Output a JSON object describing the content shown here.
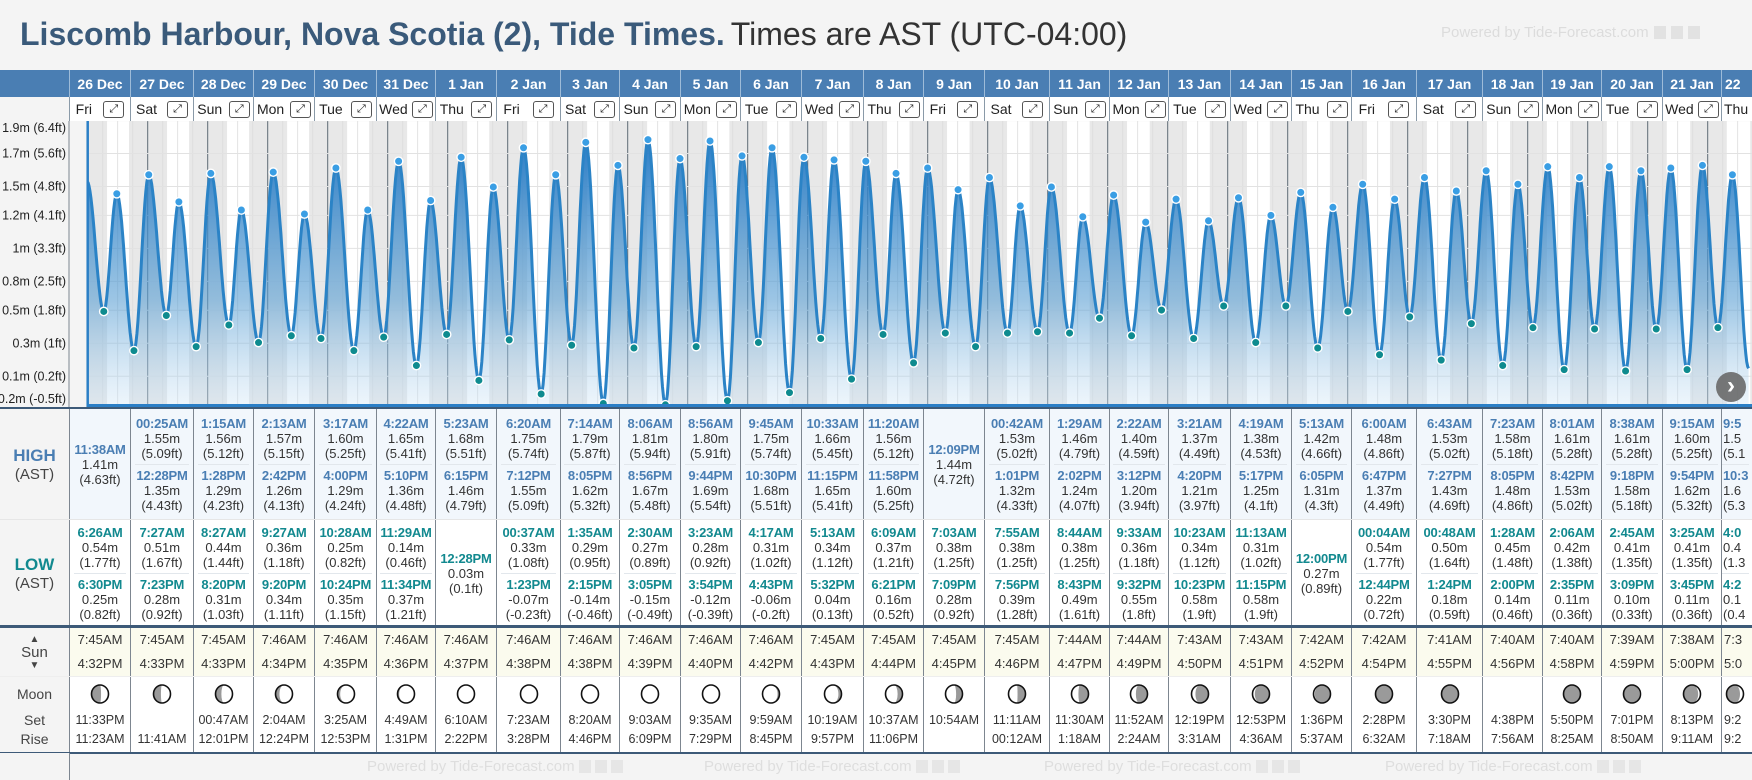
{
  "header": {
    "title_location": "Liscomb Harbour, Nova Scotia (2), Tide Times.",
    "title_tz": "Times are AST (UTC-04:00)",
    "powered_by": "Powered by Tide-Forecast.com"
  },
  "labels": {
    "high": "HIGH",
    "low": "LOW",
    "ast": "(AST)",
    "sun": "Sun",
    "moon": "Moon",
    "set": "Set",
    "rise": "Rise",
    "expand_icon": "⤢",
    "next_icon": "›",
    "sun_up": "▲",
    "sun_down": "▼"
  },
  "colors": {
    "brand": "#3a5a7a",
    "header_bar": "#4a7eb3",
    "high_text": "#4a7eb3",
    "low_text": "#12898f",
    "tide_line": "#2b83c6",
    "high_dot": "#3a9ee4",
    "low_dot": "#0e8b8f",
    "night_band": "#e8e8e8"
  },
  "days": [
    {
      "date": "26 Dec",
      "dow": "Fri",
      "highs": [
        [
          "11:38AM",
          "1.41m",
          "(4.63ft)"
        ]
      ],
      "lows": [
        [
          "6:26AM",
          "0.54m",
          "(1.77ft)"
        ],
        [
          "6:30PM",
          "0.25m",
          "(0.82ft)"
        ]
      ],
      "sunrise": "7:45AM",
      "sunset": "4:32PM",
      "moonset": "11:33PM",
      "moonrise": "11:23AM",
      "moon_phase": 0.23
    },
    {
      "date": "27 Dec",
      "dow": "Sat",
      "highs": [
        [
          "00:25AM",
          "1.55m",
          "(5.09ft)"
        ],
        [
          "12:28PM",
          "1.35m",
          "(4.43ft)"
        ]
      ],
      "lows": [
        [
          "7:27AM",
          "0.51m",
          "(1.67ft)"
        ],
        [
          "7:23PM",
          "0.28m",
          "(0.92ft)"
        ]
      ],
      "sunrise": "7:45AM",
      "sunset": "4:33PM",
      "moonset": "",
      "moonrise": "11:41AM",
      "moon_phase": 0.27
    },
    {
      "date": "28 Dec",
      "dow": "Sun",
      "highs": [
        [
          "1:15AM",
          "1.56m",
          "(5.12ft)"
        ],
        [
          "1:28PM",
          "1.29m",
          "(4.23ft)"
        ]
      ],
      "lows": [
        [
          "8:27AM",
          "0.44m",
          "(1.44ft)"
        ],
        [
          "8:20PM",
          "0.31m",
          "(1.03ft)"
        ]
      ],
      "sunrise": "7:45AM",
      "sunset": "4:33PM",
      "moonset": "00:47AM",
      "moonrise": "12:01PM",
      "moon_phase": 0.3
    },
    {
      "date": "29 Dec",
      "dow": "Mon",
      "highs": [
        [
          "2:13AM",
          "1.57m",
          "(5.15ft)"
        ],
        [
          "2:42PM",
          "1.26m",
          "(4.13ft)"
        ]
      ],
      "lows": [
        [
          "9:27AM",
          "0.36m",
          "(1.18ft)"
        ],
        [
          "9:20PM",
          "0.34m",
          "(1.11ft)"
        ]
      ],
      "sunrise": "7:46AM",
      "sunset": "4:34PM",
      "moonset": "2:04AM",
      "moonrise": "12:24PM",
      "moon_phase": 0.34
    },
    {
      "date": "30 Dec",
      "dow": "Tue",
      "highs": [
        [
          "3:17AM",
          "1.60m",
          "(5.25ft)"
        ],
        [
          "4:00PM",
          "1.29m",
          "(4.24ft)"
        ]
      ],
      "lows": [
        [
          "10:28AM",
          "0.25m",
          "(0.82ft)"
        ],
        [
          "10:24PM",
          "0.35m",
          "(1.15ft)"
        ]
      ],
      "sunrise": "7:46AM",
      "sunset": "4:35PM",
      "moonset": "3:25AM",
      "moonrise": "12:53PM",
      "moon_phase": 0.37
    },
    {
      "date": "31 Dec",
      "dow": "Wed",
      "highs": [
        [
          "4:22AM",
          "1.65m",
          "(5.41ft)"
        ],
        [
          "5:10PM",
          "1.36m",
          "(4.48ft)"
        ]
      ],
      "lows": [
        [
          "11:29AM",
          "0.14m",
          "(0.46ft)"
        ],
        [
          "11:34PM",
          "0.37m",
          "(1.21ft)"
        ]
      ],
      "sunrise": "7:46AM",
      "sunset": "4:36PM",
      "moonset": "4:49AM",
      "moonrise": "1:31PM",
      "moon_phase": 0.4
    },
    {
      "date": "1 Jan",
      "dow": "Thu",
      "highs": [
        [
          "5:23AM",
          "1.68m",
          "(5.51ft)"
        ],
        [
          "6:15PM",
          "1.46m",
          "(4.79ft)"
        ]
      ],
      "lows": [
        [
          "12:28PM",
          "0.03m",
          "(0.1ft)"
        ]
      ],
      "sunrise": "7:46AM",
      "sunset": "4:37PM",
      "moonset": "6:10AM",
      "moonrise": "2:22PM",
      "moon_phase": 0.44
    },
    {
      "date": "2 Jan",
      "dow": "Fri",
      "highs": [
        [
          "6:20AM",
          "1.75m",
          "(5.74ft)"
        ],
        [
          "7:12PM",
          "1.55m",
          "(5.09ft)"
        ]
      ],
      "lows": [
        [
          "00:37AM",
          "0.33m",
          "(1.08ft)"
        ],
        [
          "1:23PM",
          "-0.07m",
          "(-0.23ft)"
        ]
      ],
      "sunrise": "7:46AM",
      "sunset": "4:38PM",
      "moonset": "7:23AM",
      "moonrise": "3:28PM",
      "moon_phase": 0.47
    },
    {
      "date": "3 Jan",
      "dow": "Sat",
      "highs": [
        [
          "7:14AM",
          "1.79m",
          "(5.87ft)"
        ],
        [
          "8:05PM",
          "1.62m",
          "(5.32ft)"
        ]
      ],
      "lows": [
        [
          "1:35AM",
          "0.29m",
          "(0.95ft)"
        ],
        [
          "2:15PM",
          "-0.14m",
          "(-0.46ft)"
        ]
      ],
      "sunrise": "7:46AM",
      "sunset": "4:38PM",
      "moonset": "8:20AM",
      "moonrise": "4:46PM",
      "moon_phase": 0.5
    },
    {
      "date": "4 Jan",
      "dow": "Sun",
      "highs": [
        [
          "8:06AM",
          "1.81m",
          "(5.94ft)"
        ],
        [
          "8:56PM",
          "1.67m",
          "(5.48ft)"
        ]
      ],
      "lows": [
        [
          "2:30AM",
          "0.27m",
          "(0.89ft)"
        ],
        [
          "3:05PM",
          "-0.15m",
          "(-0.49ft)"
        ]
      ],
      "sunrise": "7:46AM",
      "sunset": "4:39PM",
      "moonset": "9:03AM",
      "moonrise": "6:09PM",
      "moon_phase": 0.54
    },
    {
      "date": "5 Jan",
      "dow": "Mon",
      "highs": [
        [
          "8:56AM",
          "1.80m",
          "(5.91ft)"
        ],
        [
          "9:44PM",
          "1.69m",
          "(5.54ft)"
        ]
      ],
      "lows": [
        [
          "3:23AM",
          "0.28m",
          "(0.92ft)"
        ],
        [
          "3:54PM",
          "-0.12m",
          "(-0.39ft)"
        ]
      ],
      "sunrise": "7:46AM",
      "sunset": "4:40PM",
      "moonset": "9:35AM",
      "moonrise": "7:29PM",
      "moon_phase": 0.57
    },
    {
      "date": "6 Jan",
      "dow": "Tue",
      "highs": [
        [
          "9:45AM",
          "1.75m",
          "(5.74ft)"
        ],
        [
          "10:30PM",
          "1.68m",
          "(5.51ft)"
        ]
      ],
      "lows": [
        [
          "4:17AM",
          "0.31m",
          "(1.02ft)"
        ],
        [
          "4:43PM",
          "-0.06m",
          "(-0.2ft)"
        ]
      ],
      "sunrise": "7:46AM",
      "sunset": "4:42PM",
      "moonset": "9:59AM",
      "moonrise": "8:45PM",
      "moon_phase": 0.61
    },
    {
      "date": "7 Jan",
      "dow": "Wed",
      "highs": [
        [
          "10:33AM",
          "1.66m",
          "(5.45ft)"
        ],
        [
          "11:15PM",
          "1.65m",
          "(5.41ft)"
        ]
      ],
      "lows": [
        [
          "5:13AM",
          "0.34m",
          "(1.12ft)"
        ],
        [
          "5:32PM",
          "0.04m",
          "(0.13ft)"
        ]
      ],
      "sunrise": "7:45AM",
      "sunset": "4:43PM",
      "moonset": "10:19AM",
      "moonrise": "9:57PM",
      "moon_phase": 0.64
    },
    {
      "date": "8 Jan",
      "dow": "Thu",
      "highs": [
        [
          "11:20AM",
          "1.56m",
          "(5.12ft)"
        ],
        [
          "11:58PM",
          "1.60m",
          "(5.25ft)"
        ]
      ],
      "lows": [
        [
          "6:09AM",
          "0.37m",
          "(1.21ft)"
        ],
        [
          "6:21PM",
          "0.16m",
          "(0.52ft)"
        ]
      ],
      "sunrise": "7:45AM",
      "sunset": "4:44PM",
      "moonset": "10:37AM",
      "moonrise": "11:06PM",
      "moon_phase": 0.68
    },
    {
      "date": "9 Jan",
      "dow": "Fri",
      "highs": [
        [
          "12:09PM",
          "1.44m",
          "(4.72ft)"
        ]
      ],
      "lows": [
        [
          "7:03AM",
          "0.38m",
          "(1.25ft)"
        ],
        [
          "7:09PM",
          "0.28m",
          "(0.92ft)"
        ]
      ],
      "sunrise": "7:45AM",
      "sunset": "4:45PM",
      "moonset": "10:54AM",
      "moonrise": "",
      "moon_phase": 0.71
    },
    {
      "date": "10 Jan",
      "dow": "Sat",
      "highs": [
        [
          "00:42AM",
          "1.53m",
          "(5.02ft)"
        ],
        [
          "1:01PM",
          "1.32m",
          "(4.33ft)"
        ]
      ],
      "lows": [
        [
          "7:55AM",
          "0.38m",
          "(1.25ft)"
        ],
        [
          "7:56PM",
          "0.39m",
          "(1.28ft)"
        ]
      ],
      "sunrise": "7:45AM",
      "sunset": "4:46PM",
      "moonset": "11:11AM",
      "moonrise": "00:12AM",
      "moon_phase": 0.74
    },
    {
      "date": "11 Jan",
      "dow": "Sun",
      "highs": [
        [
          "1:29AM",
          "1.46m",
          "(4.79ft)"
        ],
        [
          "2:02PM",
          "1.24m",
          "(4.07ft)"
        ]
      ],
      "lows": [
        [
          "8:44AM",
          "0.38m",
          "(1.25ft)"
        ],
        [
          "8:43PM",
          "0.49m",
          "(1.61ft)"
        ]
      ],
      "sunrise": "7:44AM",
      "sunset": "4:47PM",
      "moonset": "11:30AM",
      "moonrise": "1:18AM",
      "moon_phase": 0.78
    },
    {
      "date": "12 Jan",
      "dow": "Mon",
      "highs": [
        [
          "2:22AM",
          "1.40m",
          "(4.59ft)"
        ],
        [
          "3:12PM",
          "1.20m",
          "(3.94ft)"
        ]
      ],
      "lows": [
        [
          "9:33AM",
          "0.36m",
          "(1.18ft)"
        ],
        [
          "9:32PM",
          "0.55m",
          "(1.8ft)"
        ]
      ],
      "sunrise": "7:44AM",
      "sunset": "4:49PM",
      "moonset": "11:52AM",
      "moonrise": "2:24AM",
      "moon_phase": 0.81
    },
    {
      "date": "13 Jan",
      "dow": "Tue",
      "highs": [
        [
          "3:21AM",
          "1.37m",
          "(4.49ft)"
        ],
        [
          "4:20PM",
          "1.21m",
          "(3.97ft)"
        ]
      ],
      "lows": [
        [
          "10:23AM",
          "0.34m",
          "(1.12ft)"
        ],
        [
          "10:23PM",
          "0.58m",
          "(1.9ft)"
        ]
      ],
      "sunrise": "7:43AM",
      "sunset": "4:50PM",
      "moonset": "12:19PM",
      "moonrise": "3:31AM",
      "moon_phase": 0.84
    },
    {
      "date": "14 Jan",
      "dow": "Wed",
      "highs": [
        [
          "4:19AM",
          "1.38m",
          "(4.53ft)"
        ],
        [
          "5:17PM",
          "1.25m",
          "(4.1ft)"
        ]
      ],
      "lows": [
        [
          "11:13AM",
          "0.31m",
          "(1.02ft)"
        ],
        [
          "11:15PM",
          "0.58m",
          "(1.9ft)"
        ]
      ],
      "sunrise": "7:43AM",
      "sunset": "4:51PM",
      "moonset": "12:53PM",
      "moonrise": "4:36AM",
      "moon_phase": 0.88
    },
    {
      "date": "15 Jan",
      "dow": "Thu",
      "highs": [
        [
          "5:13AM",
          "1.42m",
          "(4.66ft)"
        ],
        [
          "6:05PM",
          "1.31m",
          "(4.3ft)"
        ]
      ],
      "lows": [
        [
          "12:00PM",
          "0.27m",
          "(0.89ft)"
        ]
      ],
      "sunrise": "7:42AM",
      "sunset": "4:52PM",
      "moonset": "1:36PM",
      "moonrise": "5:37AM",
      "moon_phase": 0.91
    },
    {
      "date": "16 Jan",
      "dow": "Fri",
      "highs": [
        [
          "6:00AM",
          "1.48m",
          "(4.86ft)"
        ],
        [
          "6:47PM",
          "1.37m",
          "(4.49ft)"
        ]
      ],
      "lows": [
        [
          "00:04AM",
          "0.54m",
          "(1.77ft)"
        ],
        [
          "12:44PM",
          "0.22m",
          "(0.72ft)"
        ]
      ],
      "sunrise": "7:42AM",
      "sunset": "4:54PM",
      "moonset": "2:28PM",
      "moonrise": "6:32AM",
      "moon_phase": 0.95
    },
    {
      "date": "17 Jan",
      "dow": "Sat",
      "highs": [
        [
          "6:43AM",
          "1.53m",
          "(5.02ft)"
        ],
        [
          "7:27PM",
          "1.43m",
          "(4.69ft)"
        ]
      ],
      "lows": [
        [
          "00:48AM",
          "0.50m",
          "(1.64ft)"
        ],
        [
          "1:24PM",
          "0.18m",
          "(0.59ft)"
        ]
      ],
      "sunrise": "7:41AM",
      "sunset": "4:55PM",
      "moonset": "3:30PM",
      "moonrise": "7:18AM",
      "moon_phase": 0.98
    },
    {
      "date": "18 Jan",
      "dow": "Sun",
      "highs": [
        [
          "7:23AM",
          "1.58m",
          "(5.18ft)"
        ],
        [
          "8:05PM",
          "1.48m",
          "(4.86ft)"
        ]
      ],
      "lows": [
        [
          "1:28AM",
          "0.45m",
          "(1.48ft)"
        ],
        [
          "2:00PM",
          "0.14m",
          "(0.46ft)"
        ]
      ],
      "sunrise": "7:40AM",
      "sunset": "4:56PM",
      "moonset": "4:38PM",
      "moonrise": "7:56AM",
      "moon_phase": null
    },
    {
      "date": "19 Jan",
      "dow": "Mon",
      "highs": [
        [
          "8:01AM",
          "1.61m",
          "(5.28ft)"
        ],
        [
          "8:42PM",
          "1.53m",
          "(5.02ft)"
        ]
      ],
      "lows": [
        [
          "2:06AM",
          "0.42m",
          "(1.38ft)"
        ],
        [
          "2:35PM",
          "0.11m",
          "(0.36ft)"
        ]
      ],
      "sunrise": "7:40AM",
      "sunset": "4:58PM",
      "moonset": "5:50PM",
      "moonrise": "8:25AM",
      "moon_phase": 0.05
    },
    {
      "date": "20 Jan",
      "dow": "Tue",
      "highs": [
        [
          "8:38AM",
          "1.61m",
          "(5.28ft)"
        ],
        [
          "9:18PM",
          "1.58m",
          "(5.18ft)"
        ]
      ],
      "lows": [
        [
          "2:45AM",
          "0.41m",
          "(1.35ft)"
        ],
        [
          "3:09PM",
          "0.10m",
          "(0.33ft)"
        ]
      ],
      "sunrise": "7:39AM",
      "sunset": "4:59PM",
      "moonset": "7:01PM",
      "moonrise": "8:50AM",
      "moon_phase": 0.08
    },
    {
      "date": "21 Jan",
      "dow": "Wed",
      "highs": [
        [
          "9:15AM",
          "1.60m",
          "(5.25ft)"
        ],
        [
          "9:54PM",
          "1.62m",
          "(5.32ft)"
        ]
      ],
      "lows": [
        [
          "3:25AM",
          "0.41m",
          "(1.35ft)"
        ],
        [
          "3:45PM",
          "0.11m",
          "(0.36ft)"
        ]
      ],
      "sunrise": "7:38AM",
      "sunset": "5:00PM",
      "moonset": "8:13PM",
      "moonrise": "9:11AM",
      "moon_phase": 0.12
    },
    {
      "date": "22",
      "dow": "Thu",
      "highs": [
        [
          "9:5",
          "1.5",
          "(5.1"
        ],
        [
          "10:3",
          "1.6",
          "(5.3"
        ]
      ],
      "lows": [
        [
          "4:0",
          "0.4",
          "(1.3"
        ],
        [
          "4:2",
          "0.1",
          "(0.4"
        ]
      ],
      "sunrise": "7:3",
      "sunset": "5:0",
      "moonset": "9:2",
      "moonrise": "9:2",
      "moon_phase": 0.15
    }
  ],
  "chart_data": {
    "type": "area",
    "title": "",
    "xlabel": "",
    "ylabel": "Tide height",
    "x_start": "26 Dec 00:00",
    "ylim_m": [
      -0.16,
      1.95
    ],
    "y_ticks": [
      {
        "label": "1.9m (6.4ft)",
        "ft": 6.4
      },
      {
        "label": "1.7m (5.6ft)",
        "ft": 5.6
      },
      {
        "label": "1.5m (4.8ft)",
        "ft": 4.8
      },
      {
        "label": "1.2m (4.1ft)",
        "ft": 4.1
      },
      {
        "label": "1m (3.3ft)",
        "ft": 3.3
      },
      {
        "label": "0.8m (2.5ft)",
        "ft": 2.5
      },
      {
        "label": "0.5m (1.8ft)",
        "ft": 1.8
      },
      {
        "label": "0.3m (1ft)",
        "ft": 1.0
      },
      {
        "label": "0.1m (0.2ft)",
        "ft": 0.2
      },
      {
        "label": "-0.2m (-0.5ft)",
        "ft": -0.5
      }
    ],
    "series_source": "days[].highs / days[].lows",
    "extra_events": [
      {
        "day": -1,
        "time": "11:45PM",
        "m": 1.5,
        "type": "high"
      },
      {
        "day": 27,
        "time": "4:05AM",
        "m": 0.42,
        "type": "low"
      },
      {
        "day": 27,
        "time": "9:53AM",
        "m": 1.55,
        "type": "high"
      },
      {
        "day": 27,
        "time": "4:22PM",
        "m": 0.12,
        "type": "low"
      }
    ],
    "grid": true
  }
}
